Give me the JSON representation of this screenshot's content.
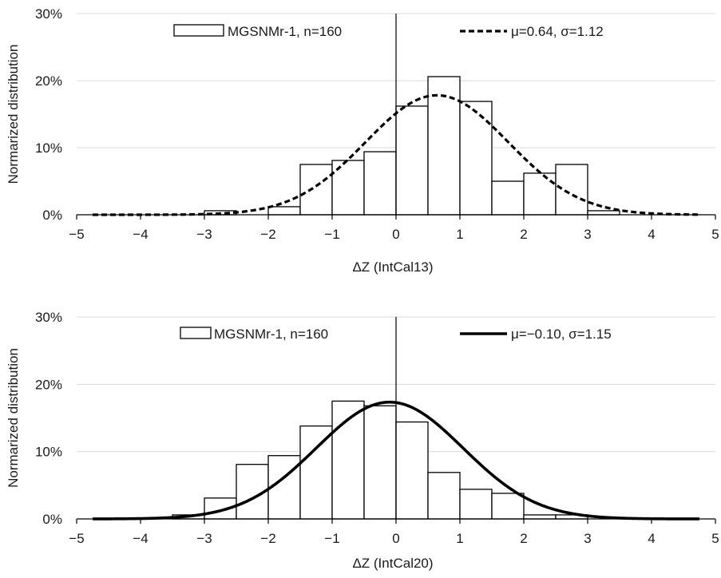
{
  "chart_data": [
    {
      "type": "bar",
      "xlabel": "ΔZ (IntCal13)",
      "ylabel": "Normarized distribution",
      "xlim": [
        -5,
        5
      ],
      "ylim": [
        0,
        30
      ],
      "x_ticks": [
        "−5",
        "−4",
        "−3",
        "−2",
        "−1",
        "0",
        "1",
        "2",
        "3",
        "4",
        "5"
      ],
      "y_ticks": [
        "0%",
        "10%",
        "20%",
        "30%"
      ],
      "grid": "horizontal",
      "histogram": {
        "name": "MGSNMr-1, n=160",
        "bin_edges": [
          -3,
          -2.5,
          -2,
          -1.5,
          -1,
          -0.5,
          0,
          0.5,
          1,
          1.5,
          2,
          2.5,
          3,
          3.5
        ],
        "values": [
          0.6,
          0,
          1.2,
          7.5,
          8.1,
          9.4,
          16.2,
          20.6,
          16.9,
          5.0,
          6.2,
          7.5,
          0.6
        ]
      },
      "curve": {
        "name": "μ=0.64, σ=1.12",
        "mu": 0.64,
        "sigma": 1.12,
        "scale": 50,
        "style": "dashed"
      },
      "legend": {
        "bar_label": "MGSNMr-1, n=160",
        "curve_label": "μ=0.64, σ=1.12",
        "placement": "top"
      }
    },
    {
      "type": "bar",
      "xlabel": "ΔZ (IntCal20)",
      "ylabel": "Normarized distribution",
      "xlim": [
        -5,
        5
      ],
      "ylim": [
        0,
        30
      ],
      "x_ticks": [
        "−5",
        "−4",
        "−3",
        "−2",
        "−1",
        "0",
        "1",
        "2",
        "3",
        "4",
        "5"
      ],
      "y_ticks": [
        "0%",
        "10%",
        "20%",
        "30%"
      ],
      "grid": "horizontal",
      "histogram": {
        "name": "MGSNMr-1, n=160",
        "bin_edges": [
          -3.5,
          -3,
          -2.5,
          -2,
          -1.5,
          -1,
          -0.5,
          0,
          0.5,
          1,
          1.5,
          2,
          2.5,
          3
        ],
        "values": [
          0.6,
          3.1,
          8.1,
          9.4,
          13.8,
          17.5,
          16.8,
          14.4,
          6.9,
          4.4,
          3.8,
          0.6,
          0.6
        ]
      },
      "curve": {
        "name": "μ=−0.10, σ=1.15",
        "mu": -0.1,
        "sigma": 1.15,
        "scale": 50,
        "style": "solid"
      },
      "legend": {
        "bar_label": "MGSNMr-1, n=160",
        "curve_label": "μ=−0.10, σ=1.15",
        "placement": "top"
      }
    }
  ]
}
